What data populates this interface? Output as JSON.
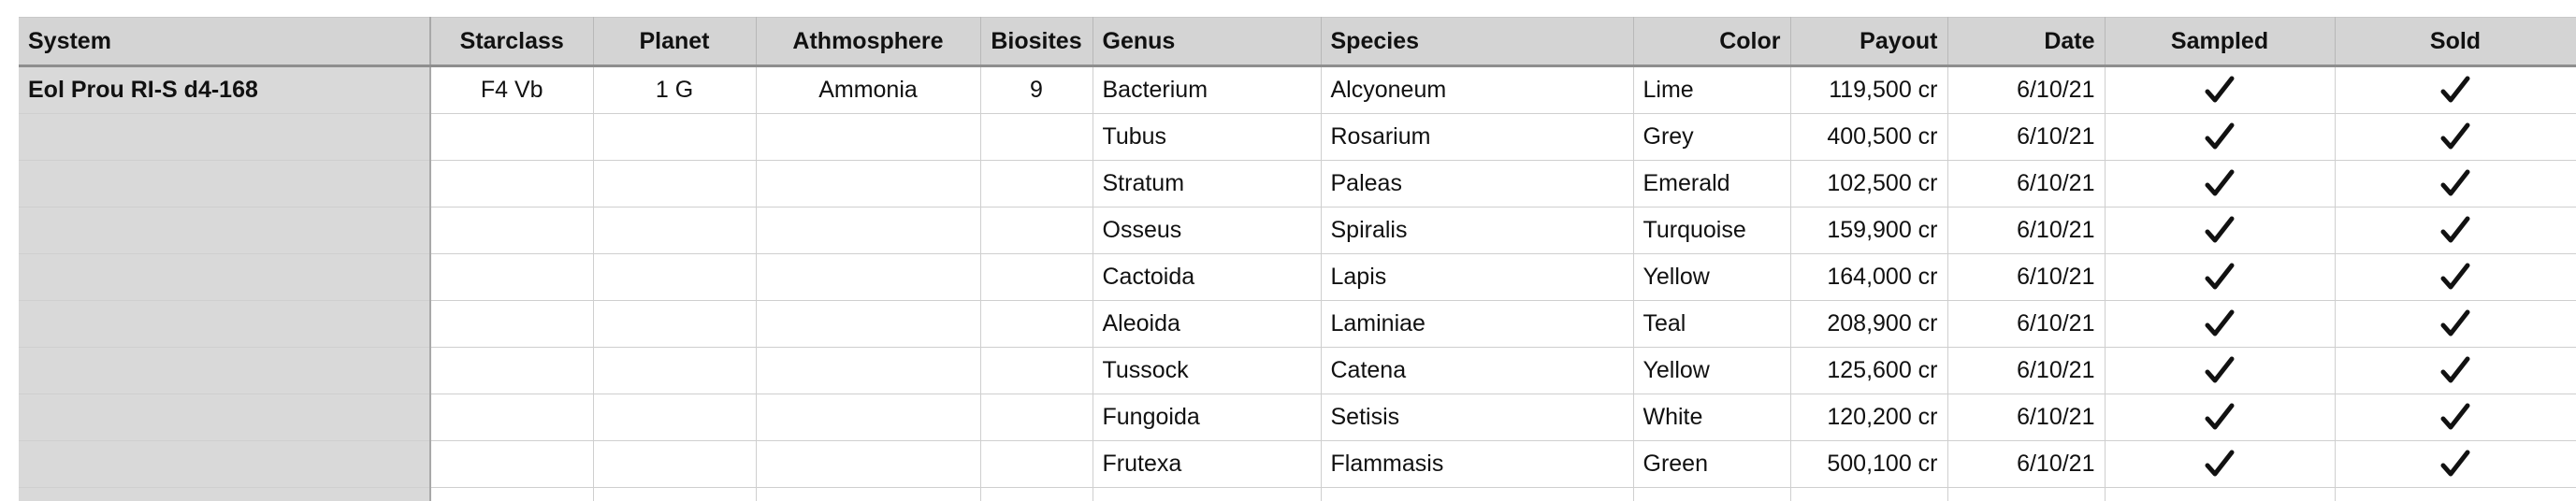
{
  "columns": {
    "system": "System",
    "starclass": "Starclass",
    "planet": "Planet",
    "atmosphere": "Athmosphere",
    "biosites": "Biosites",
    "genus": "Genus",
    "species": "Species",
    "color": "Color",
    "payout": "Payout",
    "date": "Date",
    "sampled": "Sampled",
    "sold": "Sold"
  },
  "system_row": {
    "system": "Eol Prou RI-S d4-168",
    "starclass": "F4 Vb",
    "planet": "1 G",
    "atmosphere": "Ammonia",
    "biosites": "9"
  },
  "rows": [
    {
      "genus": "Bacterium",
      "species": "Alcyoneum",
      "color": "Lime",
      "payout": "119,500 cr",
      "date": "6/10/21",
      "sampled": true,
      "sold": true
    },
    {
      "genus": "Tubus",
      "species": "Rosarium",
      "color": "Grey",
      "payout": "400,500 cr",
      "date": "6/10/21",
      "sampled": true,
      "sold": true
    },
    {
      "genus": "Stratum",
      "species": "Paleas",
      "color": "Emerald",
      "payout": "102,500 cr",
      "date": "6/10/21",
      "sampled": true,
      "sold": true
    },
    {
      "genus": "Osseus",
      "species": "Spiralis",
      "color": "Turquoise",
      "payout": "159,900 cr",
      "date": "6/10/21",
      "sampled": true,
      "sold": true
    },
    {
      "genus": "Cactoida",
      "species": "Lapis",
      "color": "Yellow",
      "payout": "164,000 cr",
      "date": "6/10/21",
      "sampled": true,
      "sold": true
    },
    {
      "genus": "Aleoida",
      "species": "Laminiae",
      "color": "Teal",
      "payout": "208,900 cr",
      "date": "6/10/21",
      "sampled": true,
      "sold": true
    },
    {
      "genus": "Tussock",
      "species": "Catena",
      "color": "Yellow",
      "payout": "125,600 cr",
      "date": "6/10/21",
      "sampled": true,
      "sold": true
    },
    {
      "genus": "Fungoida",
      "species": "Setisis",
      "color": "White",
      "payout": "120,200 cr",
      "date": "6/10/21",
      "sampled": true,
      "sold": true
    },
    {
      "genus": "Frutexa",
      "species": "Flammasis",
      "color": "Green",
      "payout": "500,100 cr",
      "date": "6/10/21",
      "sampled": true,
      "sold": true
    }
  ],
  "icons": {
    "check": "check-icon"
  },
  "colors": {
    "header_bg": "#d4d4d4",
    "system_col_bg": "#d9d9d9",
    "grid_line": "#cfcfcf"
  }
}
